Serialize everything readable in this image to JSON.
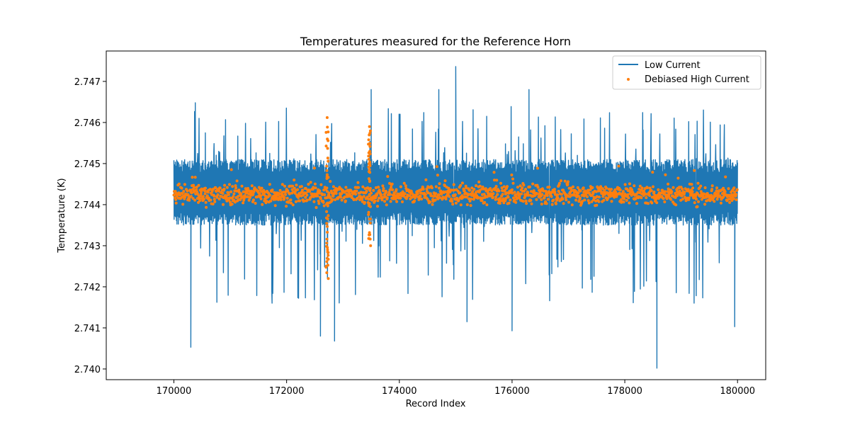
{
  "chart_data": {
    "type": "line",
    "title": "Temperatures measured for the Reference Horn",
    "xlabel": "Record Index",
    "ylabel": "Temperature (K)",
    "xlim": [
      168800,
      180500
    ],
    "ylim": [
      2.73974,
      2.74774
    ],
    "xticks": [
      170000,
      172000,
      174000,
      176000,
      178000,
      180000
    ],
    "xtick_labels": [
      "170000",
      "172000",
      "174000",
      "176000",
      "178000",
      "180000"
    ],
    "yticks": [
      2.74,
      2.741,
      2.742,
      2.743,
      2.744,
      2.745,
      2.746,
      2.747
    ],
    "ytick_labels": [
      "2.740",
      "2.741",
      "2.742",
      "2.743",
      "2.744",
      "2.745",
      "2.746",
      "2.747"
    ],
    "legend_position": "top-right",
    "series": [
      {
        "name": "Low Current",
        "style": "line",
        "color": "#1f77b4",
        "x_range": [
          170000,
          180000
        ],
        "baseline": 2.74425,
        "band": [
          2.7435,
          2.7451
        ],
        "notable_points": [
          {
            "x": 175000,
            "y": 2.74736
          },
          {
            "x": 178570,
            "y": 2.74002
          },
          {
            "x": 170300,
            "y": 2.74053
          },
          {
            "x": 172850,
            "y": 2.74068
          },
          {
            "x": 172600,
            "y": 2.7408
          },
          {
            "x": 173500,
            "y": 2.7468
          },
          {
            "x": 174700,
            "y": 2.7468
          },
          {
            "x": 176300,
            "y": 2.7468
          },
          {
            "x": 170380,
            "y": 2.74648
          },
          {
            "x": 179950,
            "y": 2.74103
          },
          {
            "x": 176000,
            "y": 2.74093
          },
          {
            "x": 175200,
            "y": 2.74115
          }
        ]
      },
      {
        "name": "Debiased High Current",
        "style": "scatter",
        "color": "#ff7f0e",
        "x_range": [
          170000,
          180000
        ],
        "baseline": 2.74425,
        "band": [
          2.744,
          2.7445
        ],
        "notable_points": [
          {
            "x": 172720,
            "y": 2.74612
          },
          {
            "x": 172740,
            "y": 2.7422
          },
          {
            "x": 173470,
            "y": 2.7459
          },
          {
            "x": 173490,
            "y": 2.743
          }
        ]
      }
    ]
  }
}
